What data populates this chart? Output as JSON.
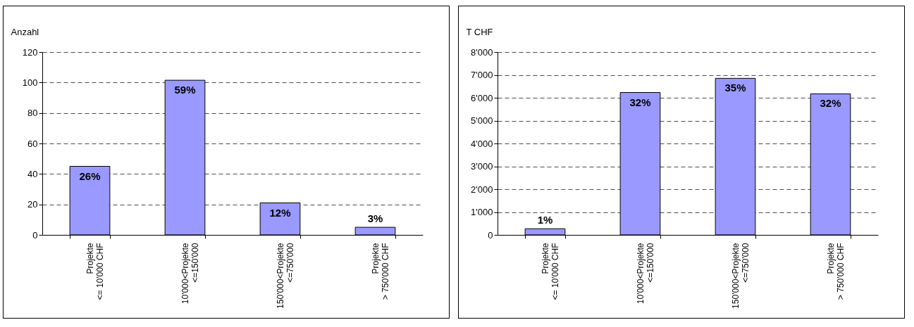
{
  "chart_data": [
    {
      "type": "bar",
      "ylabel": "Anzahl",
      "categories": [
        "Projekte\n<= 10'000 CHF",
        "10'000<Projekte\n<=150'000",
        "150'000<Projekte\n<=750'000",
        "Projekte\n> 750'000 CHF"
      ],
      "values": [
        45,
        101.5,
        21,
        5
      ],
      "color": "#9999ff",
      "ylim": [
        0,
        120
      ],
      "yticks": [
        0,
        20,
        40,
        60,
        80,
        100,
        120
      ],
      "grid": "y",
      "line_style": "dashed",
      "annotations": [
        {
          "text": "26%",
          "x": "Projekte\n<= 10'000 CHF",
          "y": 45
        },
        {
          "text": "59%",
          "x": "10'000<Projekte\n<=150'000",
          "y": 101.5
        },
        {
          "text": "12%",
          "x": "150'000<Projekte\n<=750'000",
          "y": 21
        },
        {
          "text": "3%",
          "x": "Projekte\n> 750'000 CHF",
          "y": 5
        }
      ]
    },
    {
      "type": "bar",
      "ylabel": "T CHF",
      "categories": [
        "Projekte\n<= 10'000 CHF",
        "10'000<Projekte\n<=150'000",
        "150'000<Projekte\n<=750'000",
        "Projekte\n> 750'000 CHF"
      ],
      "values": [
        270,
        6230,
        6850,
        6170
      ],
      "color": "#9999ff",
      "ylim": [
        0,
        8000
      ],
      "yticks": [
        0,
        {
          "value": 1000,
          "label": "1'000"
        },
        {
          "value": 2000,
          "label": "2'000"
        },
        {
          "value": 3000,
          "label": "3'000"
        },
        {
          "value": 4000,
          "label": "4'000"
        },
        {
          "value": 5000,
          "label": "5'000"
        },
        {
          "value": 6000,
          "label": "6'000"
        },
        {
          "value": 7000,
          "label": "7'000"
        },
        {
          "value": 8000,
          "label": "8'000"
        }
      ],
      "grid": "y",
      "line_style": "dashed",
      "annotations": [
        {
          "text": "1%",
          "x": "Projekte\n<= 10'000 CHF",
          "y": 270
        },
        {
          "text": "32%",
          "x": "10'000<Projekte\n<=150'000",
          "y": 6230
        },
        {
          "text": "35%",
          "x": "150'000<Projekte\n<=750'000",
          "y": 6850
        },
        {
          "text": "32%",
          "x": "Projekte\n> 750'000 CHF",
          "y": 6170
        }
      ]
    }
  ]
}
